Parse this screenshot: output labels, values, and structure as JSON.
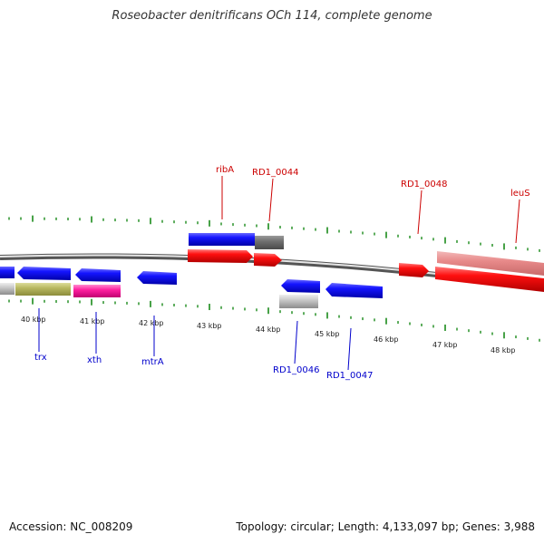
{
  "title": "Roseobacter denitrificans OCh 114, complete genome",
  "footer": {
    "accession": "Accession: NC_008209",
    "stats": "Topology: circular; Length: 4,133,097 bp; Genes: 3,988"
  },
  "colors": {
    "forward": "#ff1010",
    "forward_light": "#e88a8a",
    "reverse": "#1010ff",
    "backbone": "#888888",
    "tick": "#1a8a1a",
    "label_forward": "#cc0000",
    "label_reverse": "#0000cc",
    "olive": "#b8b860",
    "magenta": "#ff20a0",
    "gray": "#c8c8c8",
    "darkgray": "#707070"
  },
  "ticks": [
    "40 kbp",
    "41 kbp",
    "42 kbp",
    "43 kbp",
    "44 kbp",
    "45 kbp",
    "46 kbp",
    "47 kbp",
    "48 kbp"
  ],
  "labels_top": [
    "ribA",
    "RD1_0044",
    "RD1_0048",
    "leuS"
  ],
  "labels_bottom": [
    "trx",
    "xth",
    "mtrA",
    "RD1_0046",
    "RD1_0047"
  ]
}
